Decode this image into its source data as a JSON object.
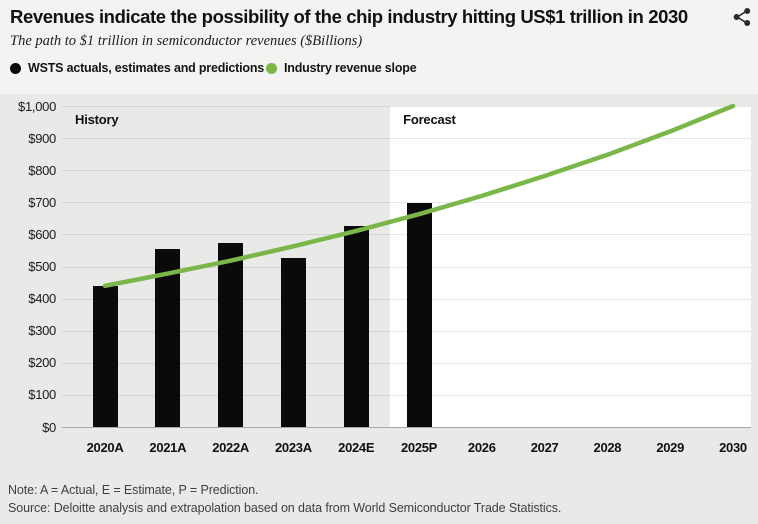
{
  "header": {
    "title": "Revenues indicate the possibility of the chip industry hitting US$1 trillion in 2030",
    "subtitle": "The path to $1 trillion in semiconductor revenues ($Billions)"
  },
  "legend": [
    {
      "label": "WSTS actuals, estimates and predictions",
      "color": "#0a0a0a"
    },
    {
      "label": "Industry revenue slope",
      "color": "#7ab648"
    }
  ],
  "chart_data": {
    "type": "bar+line",
    "title": "The path to $1 trillion in semiconductor revenues ($Billions)",
    "x_labels": [
      "2020A",
      "2021A",
      "2022A",
      "2023A",
      "2024E",
      "2025P",
      "2026",
      "2027",
      "2028",
      "2029",
      "2030"
    ],
    "bars": {
      "name": "WSTS actuals, estimates and predictions",
      "categories": [
        "2020A",
        "2021A",
        "2022A",
        "2023A",
        "2024E",
        "2025P"
      ],
      "values": [
        440,
        556,
        574,
        527,
        627,
        697
      ],
      "color": "#0a0a0a"
    },
    "line": {
      "name": "Industry revenue slope",
      "x": [
        "2020A",
        "2021A",
        "2022A",
        "2023A",
        "2024E",
        "2025P",
        "2026",
        "2027",
        "2028",
        "2029",
        "2030"
      ],
      "values": [
        440,
        478,
        518,
        563,
        611,
        663,
        720,
        782,
        848,
        921,
        1000
      ],
      "color": "#7ab648"
    },
    "ylim": [
      0,
      1000
    ],
    "y_ticks": {
      "values": [
        0,
        100,
        200,
        300,
        400,
        500,
        600,
        700,
        800,
        900,
        1000
      ],
      "labels": [
        "$0",
        "$100",
        "$200",
        "$300",
        "$400",
        "$500",
        "$600",
        "$700",
        "$800",
        "$900",
        "$1,000"
      ]
    },
    "grid": true,
    "regions": {
      "history_label": "History",
      "forecast_label": "Forecast"
    },
    "legend_position": "top"
  },
  "footer": {
    "note": "Note: A = Actual, E = Estimate, P = Prediction.",
    "source": "Source: Deloitte analysis and extrapolation based on data from World Semiconductor Trade Statistics."
  }
}
